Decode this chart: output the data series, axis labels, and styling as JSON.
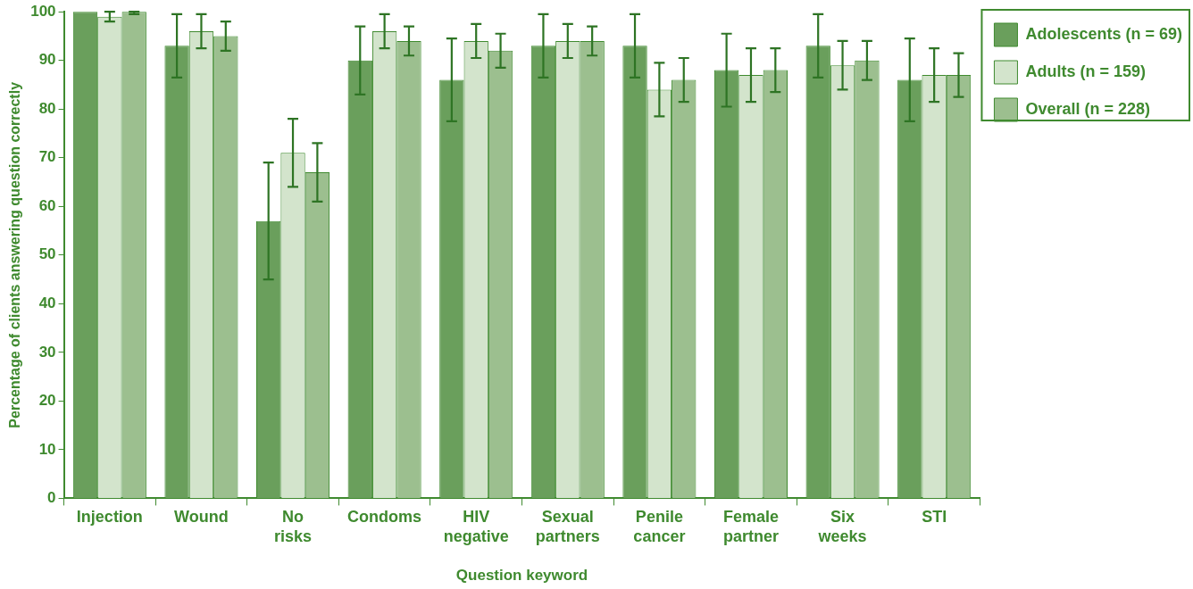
{
  "chart_data": {
    "type": "bar",
    "xlabel": "Question keyword",
    "ylabel": "Percentage of clients answering question correctly",
    "categories": [
      "Injection",
      "Wound",
      "No risks",
      "Condoms",
      "HIV negative",
      "Sexual partners",
      "Penile cancer",
      "Female partner",
      "Six weeks",
      "STI"
    ],
    "series": [
      {
        "name": "Adolescents (n = 69)",
        "color": "#6a9f5c",
        "values": [
          100,
          93,
          57,
          90,
          86,
          93,
          93,
          88,
          93,
          86
        ],
        "errors": [
          null,
          6.5,
          12,
          7,
          8.5,
          6.5,
          6.5,
          7.5,
          6.5,
          8.5
        ]
      },
      {
        "name": "Adults (n = 159)",
        "color": "#d3e4cc",
        "values": [
          99,
          96,
          71,
          96,
          94,
          94,
          84,
          87,
          89,
          87
        ],
        "errors": [
          1,
          3.5,
          7,
          3.5,
          3.5,
          3.5,
          5.5,
          5.5,
          5,
          5.5
        ]
      },
      {
        "name": "Overall (n = 228)",
        "color": "#9cbf8f",
        "values": [
          100,
          95,
          67,
          94,
          92,
          94,
          86,
          88,
          90,
          87
        ],
        "errors": [
          [
            99.5,
            100
          ],
          3,
          6,
          3,
          3.5,
          3,
          4.5,
          4.5,
          4,
          4.5
        ]
      }
    ],
    "ylim": [
      0,
      100
    ],
    "yticks": [
      0,
      10,
      20,
      30,
      40,
      50,
      60,
      70,
      80,
      90,
      100
    ],
    "grid": false,
    "legend": "top right"
  }
}
